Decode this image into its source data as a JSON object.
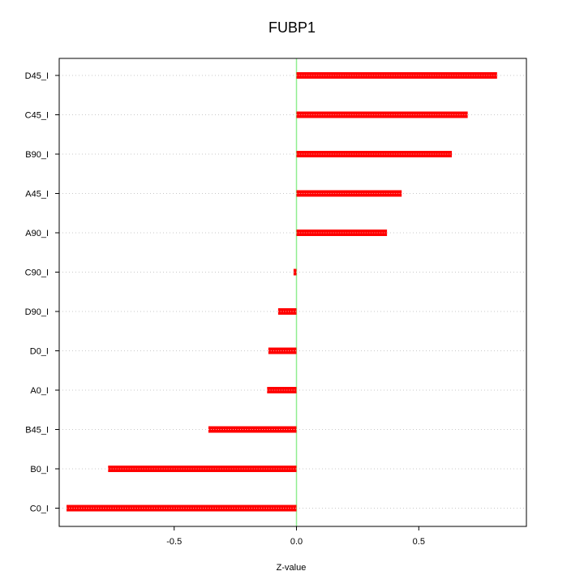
{
  "chart_data": {
    "type": "bar",
    "orientation": "horizontal",
    "title": "FUBP1",
    "xlabel": "Z-value",
    "ylabel": "",
    "xlim": [
      -0.97,
      0.94
    ],
    "xticks": [
      -0.5,
      0.0,
      0.5
    ],
    "xtick_labels": [
      "-0.5",
      "0.0",
      "0.5"
    ],
    "grid": true,
    "categories": [
      "D45_I",
      "C45_I",
      "B90_I",
      "A45_I",
      "A90_I",
      "C90_I",
      "D90_I",
      "D0_I",
      "A0_I",
      "B45_I",
      "B0_I",
      "C0_I"
    ],
    "values": [
      0.82,
      0.7,
      0.635,
      0.43,
      0.37,
      -0.012,
      -0.075,
      -0.115,
      -0.12,
      -0.36,
      -0.77,
      -0.94
    ],
    "colors": {
      "bar": "#ff0000",
      "bar_highlight": "#ffaaaa",
      "zero_line": "#90ee90",
      "grid": "#c8c8c8",
      "axis": "#000000"
    }
  }
}
